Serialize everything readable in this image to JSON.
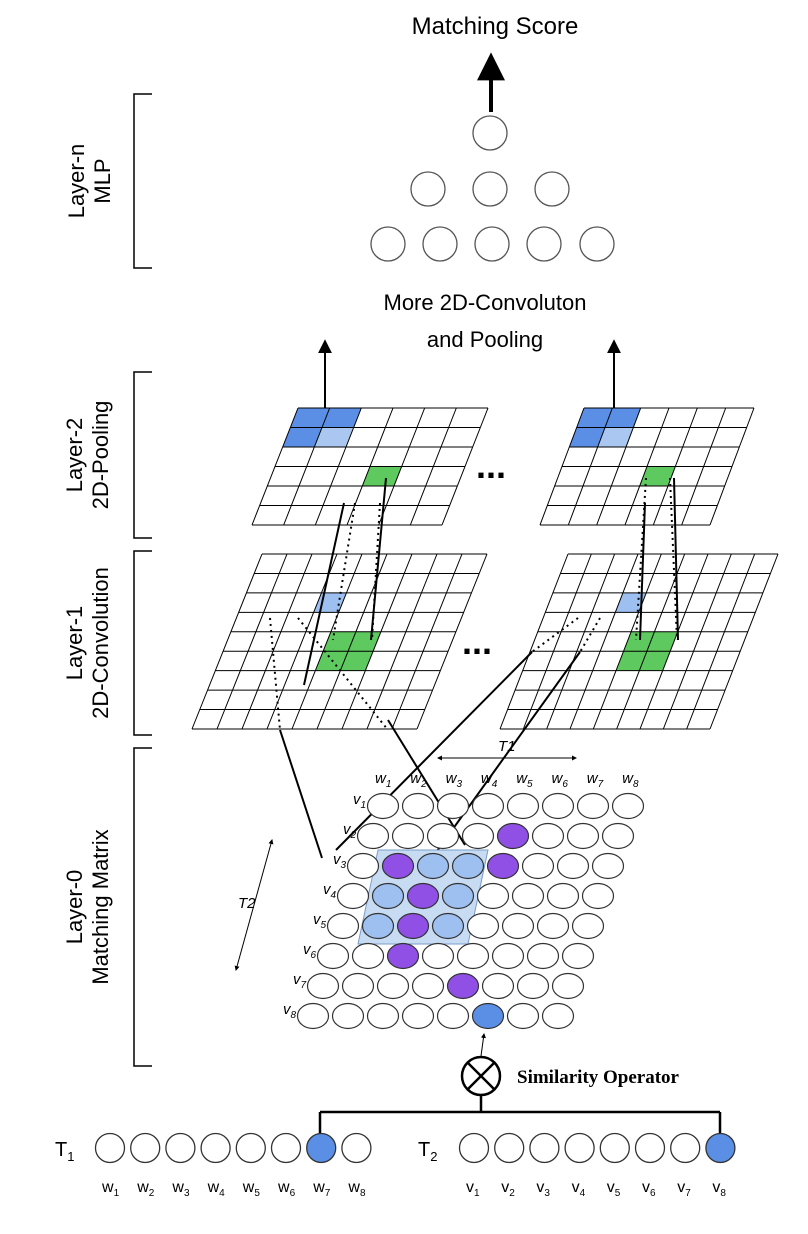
{
  "title": "Matching Score",
  "more_text_line1": "More 2D-Convoluton",
  "more_text_line2": "and Pooling",
  "ellipsis": "...",
  "layers": [
    {
      "line1": "Layer-n",
      "line2": "MLP"
    },
    {
      "line1": "Layer-2",
      "line2": "2D-Pooling"
    },
    {
      "line1": "Layer-1",
      "line2": "2D-Convolution"
    },
    {
      "line1": "Layer-0",
      "line2": "Matching Matrix"
    }
  ],
  "similarity_operator": "Similarity Operator",
  "operator_symbol": "⊗",
  "t1_axis": "T1",
  "t2_axis": "T2",
  "w_labels": [
    "w1",
    "w2",
    "w3",
    "w4",
    "w5",
    "w6",
    "w7",
    "w8"
  ],
  "v_labels": [
    "v1",
    "v2",
    "v3",
    "v4",
    "v5",
    "v6",
    "v7",
    "v8"
  ],
  "t1_seq_label": "T1",
  "t2_seq_label": "T2",
  "highlight_w_index": 7,
  "highlight_v_index": 8,
  "purple_cells": [
    [
      2,
      5
    ],
    [
      3,
      2
    ],
    [
      3,
      5
    ],
    [
      4,
      3
    ],
    [
      5,
      3
    ],
    [
      6,
      3
    ],
    [
      7,
      5
    ]
  ],
  "blue_cell": [
    8,
    6
  ],
  "colors": {
    "blue": "#5b8fe6",
    "light_blue": "#a9c7f0",
    "purple": "#9050e6",
    "green": "#5ec95e",
    "cell_blue": "#9ec0f0",
    "patch": "#c7dbf3"
  }
}
